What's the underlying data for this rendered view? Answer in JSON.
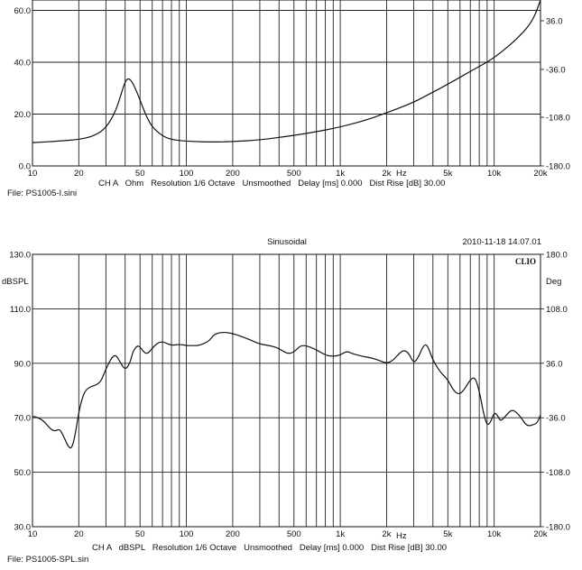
{
  "chart_data": [
    {
      "type": "line",
      "info_line": "CH A   Ohm   Resolution 1/6 Octave   Unsmoothed   Delay [ms] 0.000   Dist Rise [dB] 30.00",
      "file_label": "File: PS1005-I.sini",
      "x_scale": "log",
      "xlim": [
        10,
        20000
      ],
      "x_ticks": [
        10,
        20,
        50,
        100,
        200,
        500,
        1000,
        2000,
        5000,
        10000,
        20000
      ],
      "x_tick_labels": [
        "10",
        "20",
        "50",
        "100",
        "200",
        "500",
        "1k",
        "2k",
        "5k",
        "10k",
        "20k"
      ],
      "x_unit": "Hz",
      "ylim": [
        0,
        64
      ],
      "y_ticks": [
        0,
        20,
        40,
        60
      ],
      "y_tick_labels": [
        "0.0",
        "20.0",
        "40.0",
        "60.0"
      ],
      "y2_tick_labels": [
        "36.0",
        "-36.0",
        "-108.0",
        "-180.0"
      ],
      "grid": true,
      "series": [
        {
          "values": [
            [
              10,
              9.0
            ],
            [
              15,
              9.6
            ],
            [
              20,
              10.2
            ],
            [
              25,
              11.5
            ],
            [
              30,
              14.5
            ],
            [
              35,
              21.5
            ],
            [
              38,
              28.5
            ],
            [
              40,
              32.5
            ],
            [
              42,
              34.0
            ],
            [
              45,
              32.0
            ],
            [
              50,
              25.5
            ],
            [
              55,
              19.0
            ],
            [
              60,
              15.0
            ],
            [
              70,
              11.5
            ],
            [
              80,
              10.2
            ],
            [
              100,
              9.5
            ],
            [
              150,
              9.2
            ],
            [
              200,
              9.4
            ],
            [
              300,
              10.0
            ],
            [
              500,
              11.8
            ],
            [
              700,
              13.2
            ],
            [
              1000,
              15.0
            ],
            [
              1500,
              17.8
            ],
            [
              2000,
              20.5
            ],
            [
              3000,
              24.5
            ],
            [
              4000,
              28.5
            ],
            [
              5000,
              31.5
            ],
            [
              7000,
              36.5
            ],
            [
              10000,
              41.5
            ],
            [
              15000,
              50.5
            ],
            [
              18000,
              56.5
            ],
            [
              20000,
              64.0
            ]
          ]
        }
      ]
    },
    {
      "type": "line",
      "title": "Sinusoidal",
      "timestamp": "2010-11-18 14.07.01",
      "logo": "CLIO",
      "ylabel": "dBSPL",
      "y2label": "Deg",
      "info_line": "CH A   dBSPL   Resolution 1/6 Octave   Unsmoothed   Delay [ms] 0.000   Dist Rise [dB] 30.00",
      "file_label": "File: PS1005-SPL.sin",
      "x_scale": "log",
      "xlim": [
        10,
        20000
      ],
      "x_ticks": [
        10,
        20,
        50,
        100,
        200,
        500,
        1000,
        2000,
        5000,
        10000,
        20000
      ],
      "x_tick_labels": [
        "10",
        "20",
        "50",
        "100",
        "200",
        "500",
        "1k",
        "2k",
        "5k",
        "10k",
        "20k"
      ],
      "x_unit": "Hz",
      "ylim": [
        30,
        130
      ],
      "y_ticks": [
        30,
        50,
        70,
        90,
        110,
        130
      ],
      "y_tick_labels": [
        "30.0",
        "50.0",
        "70.0",
        "90.0",
        "110.0",
        "130.0"
      ],
      "y2_ticks": [
        180,
        108,
        36,
        -36,
        -108,
        -180
      ],
      "y2_tick_labels": [
        "180.0",
        "108.0",
        "36.0",
        "-36.0",
        "-108.0",
        "-180.0"
      ],
      "grid": true,
      "series": [
        {
          "values": [
            [
              10,
              70.5
            ],
            [
              11,
              70.0
            ],
            [
              12,
              68.5
            ],
            [
              13,
              66.0
            ],
            [
              14,
              65.0
            ],
            [
              15,
              66.0
            ],
            [
              16,
              63.0
            ],
            [
              17,
              59.5
            ],
            [
              18,
              58.5
            ],
            [
              19,
              64.0
            ],
            [
              20,
              72.0
            ],
            [
              21,
              77.0
            ],
            [
              22,
              80.0
            ],
            [
              24,
              81.5
            ],
            [
              26,
              82.0
            ],
            [
              28,
              83.5
            ],
            [
              30,
              88.0
            ],
            [
              33,
              92.5
            ],
            [
              35,
              93.0
            ],
            [
              37,
              90.5
            ],
            [
              40,
              87.5
            ],
            [
              43,
              90.0
            ],
            [
              45,
              94.5
            ],
            [
              48,
              96.5
            ],
            [
              50,
              96.0
            ],
            [
              55,
              93.0
            ],
            [
              60,
              95.5
            ],
            [
              65,
              97.5
            ],
            [
              70,
              98.0
            ],
            [
              80,
              96.5
            ],
            [
              90,
              97.0
            ],
            [
              100,
              96.5
            ],
            [
              110,
              96.5
            ],
            [
              120,
              96.5
            ],
            [
              140,
              98.0
            ],
            [
              150,
              100.5
            ],
            [
              170,
              101.5
            ],
            [
              200,
              101.0
            ],
            [
              250,
              99.0
            ],
            [
              300,
              97.0
            ],
            [
              350,
              96.5
            ],
            [
              400,
              95.5
            ],
            [
              450,
              93.5
            ],
            [
              500,
              94.0
            ],
            [
              550,
              96.5
            ],
            [
              600,
              96.5
            ],
            [
              700,
              95.0
            ],
            [
              800,
              93.0
            ],
            [
              900,
              92.5
            ],
            [
              1000,
              93.0
            ],
            [
              1100,
              94.5
            ],
            [
              1200,
              93.5
            ],
            [
              1400,
              92.5
            ],
            [
              1600,
              92.0
            ],
            [
              1800,
              91.0
            ],
            [
              2000,
              90.0
            ],
            [
              2200,
              91.0
            ],
            [
              2400,
              93.5
            ],
            [
              2600,
              95.0
            ],
            [
              2800,
              93.5
            ],
            [
              3000,
              90.0
            ],
            [
              3200,
              92.0
            ],
            [
              3500,
              97.0
            ],
            [
              3700,
              96.5
            ],
            [
              4000,
              91.0
            ],
            [
              4500,
              86.5
            ],
            [
              5000,
              84.0
            ],
            [
              5500,
              79.5
            ],
            [
              6000,
              78.5
            ],
            [
              6500,
              81.0
            ],
            [
              7000,
              84.0
            ],
            [
              7500,
              85.0
            ],
            [
              8000,
              80.0
            ],
            [
              8500,
              72.0
            ],
            [
              9000,
              67.0
            ],
            [
              9500,
              68.5
            ],
            [
              10000,
              72.0
            ],
            [
              10500,
              71.0
            ],
            [
              11000,
              68.5
            ],
            [
              12000,
              71.0
            ],
            [
              13000,
              73.0
            ],
            [
              14000,
              72.0
            ],
            [
              15000,
              70.0
            ],
            [
              16000,
              67.5
            ],
            [
              17000,
              67.0
            ],
            [
              18000,
              67.5
            ],
            [
              19000,
              68.0
            ],
            [
              20000,
              71.0
            ]
          ]
        }
      ]
    }
  ]
}
